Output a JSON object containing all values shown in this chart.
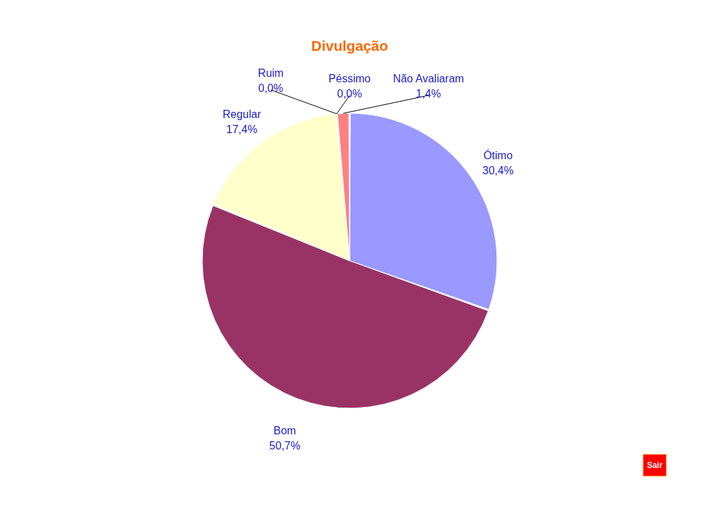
{
  "chart_data": {
    "type": "pie",
    "title": "Divulgação",
    "categories": [
      "Ótimo",
      "Bom",
      "Regular",
      "Ruim",
      "Péssimo",
      "Não Avaliaram"
    ],
    "values": [
      30.4,
      50.7,
      17.4,
      0.0,
      0.0,
      1.4
    ],
    "colors": [
      "#9999ff",
      "#993366",
      "#ffffcc",
      "#ccffff",
      "#660066",
      "#ff8080"
    ],
    "value_labels": [
      "30,4%",
      "50,7%",
      "17,4%",
      "0,0%",
      "0,0%",
      "1,4%"
    ],
    "annotations": [
      "Sair"
    ]
  }
}
